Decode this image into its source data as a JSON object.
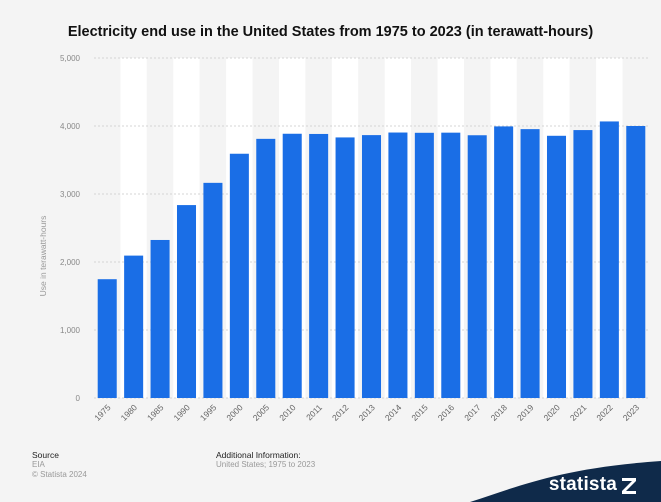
{
  "chart_data": {
    "type": "bar",
    "title": "Electricity end use in the United States from 1975 to 2023 (in terawatt-hours)",
    "ylabel": "Use in terawatt-hours",
    "xlabel": "",
    "categories": [
      "1975",
      "1980",
      "1985",
      "1990",
      "1995",
      "2000",
      "2005",
      "2010",
      "2011",
      "2012",
      "2013",
      "2014",
      "2015",
      "2016",
      "2017",
      "2018",
      "2019",
      "2020",
      "2021",
      "2022",
      "2023"
    ],
    "values": [
      1747,
      2094,
      2324,
      2837,
      3164,
      3592,
      3811,
      3886,
      3883,
      3832,
      3866,
      3904,
      3900,
      3902,
      3864,
      3994,
      3954,
      3856,
      3940,
      4067,
      4000
    ],
    "ylim": [
      0,
      5000
    ],
    "yticks": [
      "0",
      "1,000",
      "2,000",
      "3,000",
      "4,000",
      "5,000"
    ],
    "grid": true,
    "bar_color": "#1a6ee6"
  },
  "footer": {
    "source_label": "Source",
    "source_name": "EIA",
    "copyright": "© Statista 2024",
    "info_label": "Additional Information:",
    "info_text": "United States; 1975 to 2023"
  },
  "brand": {
    "logo_text": "statista",
    "logo_color": "#0f2a4a"
  }
}
